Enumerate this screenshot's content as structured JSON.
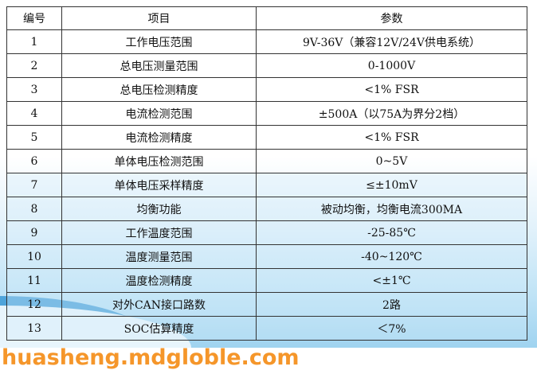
{
  "table": {
    "headers": [
      "编号",
      "项目",
      "参数"
    ],
    "rows": [
      [
        "1",
        "工作电压范围",
        "9V-36V（兼容12V/24V供电系统）"
      ],
      [
        "2",
        "总电压测量范围",
        "0-1000V"
      ],
      [
        "3",
        "总电压检测精度",
        "<1% FSR"
      ],
      [
        "4",
        "电流检测范围",
        "±500A（以75A为界分2档）"
      ],
      [
        "5",
        "电流检测精度",
        "<1% FSR"
      ],
      [
        "6",
        "单体电压检测范围",
        "0~5V"
      ],
      [
        "7",
        "单体电压采样精度",
        "≤±10mV"
      ],
      [
        "8",
        "均衡功能",
        "被动均衡，均衡电流300MA"
      ],
      [
        "9",
        "工作温度范围",
        "-25-85℃"
      ],
      [
        "10",
        "温度测量范围",
        "-40~120℃"
      ],
      [
        "11",
        "温度检测精度",
        "<±1℃"
      ],
      [
        "12",
        "对外CAN接口路数",
        "2路"
      ],
      [
        "13",
        "SOC估算精度",
        "＜7%"
      ]
    ]
  },
  "watermark": "huasheng.mdgloble.com"
}
